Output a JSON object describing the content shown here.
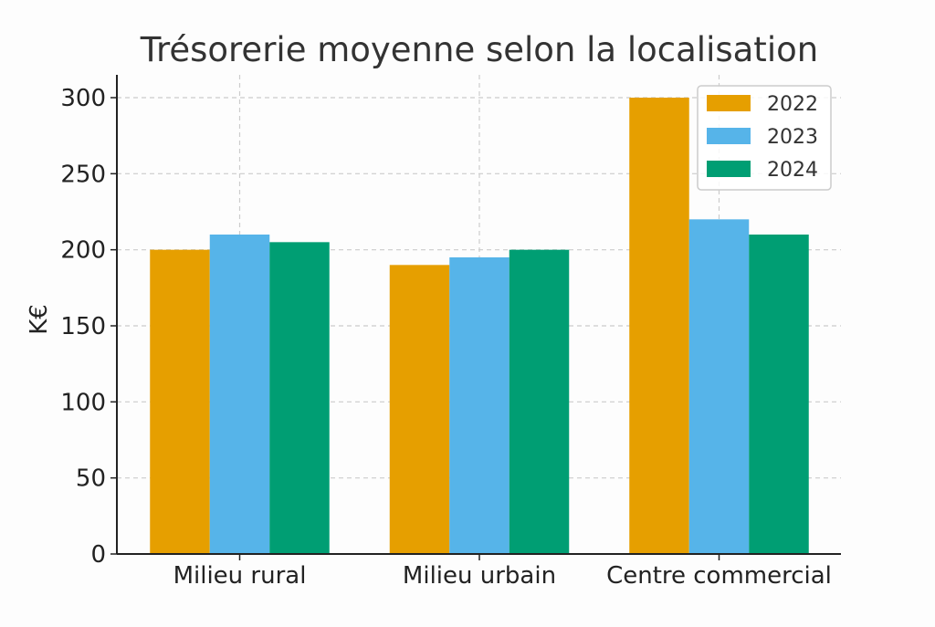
{
  "chart_data": {
    "type": "bar",
    "title": "Trésorerie moyenne selon la localisation",
    "xlabel": "",
    "ylabel": "K€",
    "categories": [
      "Milieu rural",
      "Milieu urbain",
      "Centre commercial"
    ],
    "series": [
      {
        "name": "2022",
        "color": "#E69F00",
        "values": [
          200,
          190,
          300
        ]
      },
      {
        "name": "2023",
        "color": "#56B4E9",
        "values": [
          210,
          195,
          220
        ]
      },
      {
        "name": "2024",
        "color": "#009E73",
        "values": [
          205,
          200,
          210
        ]
      }
    ],
    "ylim": [
      0,
      315
    ],
    "yticks": [
      0,
      50,
      100,
      150,
      200,
      250,
      300
    ],
    "grid": true,
    "legend_position": "top-right"
  }
}
